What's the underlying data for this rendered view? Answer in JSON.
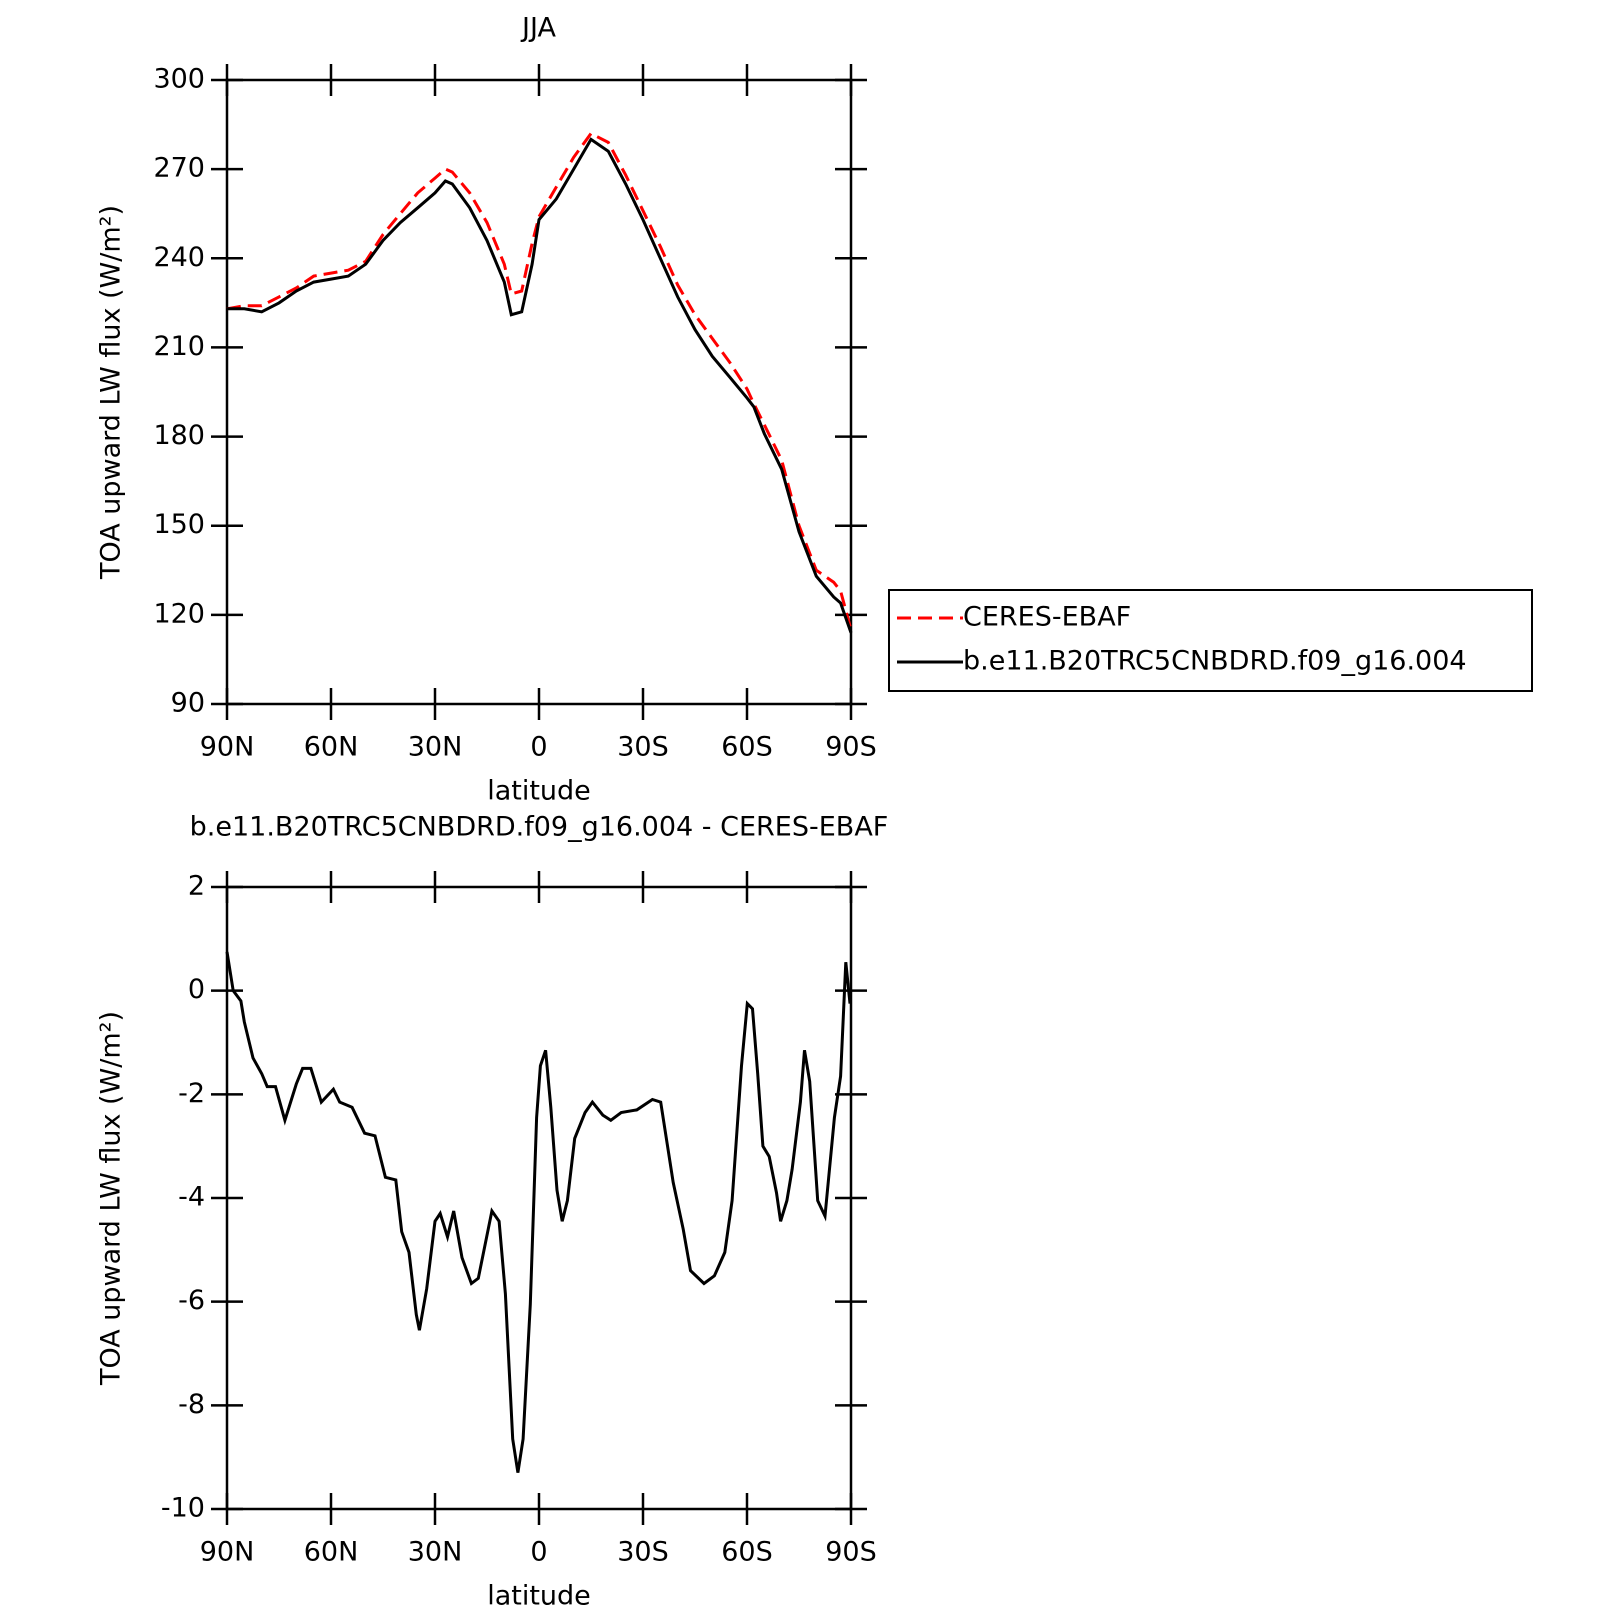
{
  "chart_data": [
    {
      "type": "line",
      "title": "JJA",
      "xlabel": "latitude",
      "ylabel": "TOA upward LW flux (W/m²)",
      "x": [
        90,
        85,
        80,
        75,
        70,
        65,
        60,
        55,
        50,
        45,
        40,
        35,
        30,
        27,
        25,
        20,
        15,
        10,
        8,
        5,
        2,
        0,
        -5,
        -10,
        -15,
        -20,
        -25,
        -30,
        -35,
        -40,
        -45,
        -50,
        -55,
        -60,
        -62,
        -65,
        -70,
        -75,
        -80,
        -85,
        -87,
        -90
      ],
      "series": [
        {
          "name": "CERES-EBAF",
          "color": "#ff0000",
          "dash": true,
          "values": [
            223,
            224,
            224,
            227,
            230,
            234,
            235,
            236,
            239,
            248,
            255,
            262,
            267,
            270,
            269,
            262,
            252,
            238,
            228,
            229,
            245,
            254,
            264,
            274,
            282,
            279,
            268,
            256,
            244,
            231,
            221,
            213,
            205,
            196,
            191,
            184,
            172,
            150,
            135,
            131,
            128,
            115
          ]
        },
        {
          "name": "b.e11.B20TRC5CNBDRD.f09_g16.004",
          "color": "#000000",
          "dash": false,
          "values": [
            223,
            223,
            222,
            225,
            229,
            232,
            233,
            234,
            238,
            246,
            252,
            257,
            262,
            266,
            265,
            257,
            246,
            232,
            221,
            222,
            238,
            253,
            260,
            270,
            280,
            276,
            265,
            253,
            240,
            227,
            216,
            207,
            200,
            193,
            190,
            181,
            169,
            148,
            133,
            126,
            124,
            114
          ]
        }
      ],
      "xlim": [
        90,
        -90
      ],
      "xticks": [
        {
          "value": 90,
          "label": "90N"
        },
        {
          "value": 60,
          "label": "60N"
        },
        {
          "value": 30,
          "label": "30N"
        },
        0,
        {
          "value": -30,
          "label": "30S"
        },
        {
          "value": -60,
          "label": "60S"
        },
        {
          "value": -90,
          "label": "90S"
        }
      ],
      "ylim": [
        90,
        300
      ],
      "yticks": [
        90,
        120,
        150,
        180,
        210,
        240,
        270,
        300
      ],
      "legend": "outside-right"
    },
    {
      "type": "line",
      "title": "b.e11.B20TRC5CNBDRD.f09_g16.004 - CERES-EBAF",
      "xlabel": "latitude",
      "ylabel": "TOA upward LW flux (W/m²)",
      "x": [
        90,
        88.2,
        86,
        85,
        82.5,
        80,
        78.4,
        76,
        73.3,
        70,
        68.2,
        65.8,
        62.8,
        59.3,
        57.5,
        53.9,
        50.3,
        47.3,
        44.3,
        41.3,
        39.6,
        37.5,
        35.4,
        34.5,
        32.4,
        30,
        28.5,
        26.4,
        24.6,
        22.2,
        19.5,
        17.5,
        13.6,
        11.5,
        9.7,
        7.6,
        6.1,
        4.6,
        2.5,
        0.7,
        -0.4,
        -1.9,
        -3.4,
        -5.2,
        -6.7,
        -8.2,
        -10.3,
        -13.3,
        -15.4,
        -18.4,
        -20.7,
        -23.7,
        -28.2,
        -32.7,
        -35.1,
        -38.7,
        -41.6,
        -43.7,
        -47.6,
        -50.6,
        -53.6,
        -55.7,
        -58.4,
        -60.1,
        -61.6,
        -63.1,
        -64.6,
        -66.4,
        -68.5,
        -69.7,
        -71.5,
        -73.0,
        -75.4,
        -76.6,
        -78.1,
        -80.4,
        -82.5,
        -85.2,
        -87.0,
        -88.5,
        -89.7
      ],
      "series": [
        {
          "color": "#000000",
          "values": [
            0.75,
            0.0,
            -0.2,
            -0.6,
            -1.3,
            -1.6,
            -1.85,
            -1.85,
            -2.5,
            -1.8,
            -1.5,
            -1.5,
            -2.15,
            -1.9,
            -2.15,
            -2.25,
            -2.75,
            -2.8,
            -3.6,
            -3.65,
            -4.65,
            -5.05,
            -6.25,
            -6.55,
            -5.75,
            -4.45,
            -4.3,
            -4.75,
            -4.25,
            -5.15,
            -5.65,
            -5.55,
            -4.25,
            -4.45,
            -5.85,
            -8.65,
            -9.3,
            -8.65,
            -6.05,
            -2.45,
            -1.45,
            -1.15,
            -2.25,
            -3.85,
            -4.45,
            -4.05,
            -2.85,
            -2.35,
            -2.15,
            -2.4,
            -2.5,
            -2.35,
            -2.3,
            -2.1,
            -2.15,
            -3.7,
            -4.6,
            -5.4,
            -5.65,
            -5.5,
            -5.05,
            -4.05,
            -1.45,
            -0.25,
            -0.35,
            -1.6,
            -3.0,
            -3.2,
            -3.9,
            -4.45,
            -4.05,
            -3.45,
            -2.15,
            -1.15,
            -1.75,
            -4.05,
            -4.35,
            -2.45,
            -1.65,
            0.55,
            -0.25
          ]
        }
      ],
      "xlim": [
        90,
        -90
      ],
      "xticks": [
        {
          "value": 90,
          "label": "90N"
        },
        {
          "value": 60,
          "label": "60N"
        },
        {
          "value": 30,
          "label": "30N"
        },
        0,
        {
          "value": -30,
          "label": "30S"
        },
        {
          "value": -60,
          "label": "60S"
        },
        {
          "value": -90,
          "label": "90S"
        }
      ],
      "ylim": [
        -10,
        2
      ],
      "yticks": [
        -10,
        -8,
        -6,
        -4,
        -2,
        0,
        2
      ]
    }
  ]
}
